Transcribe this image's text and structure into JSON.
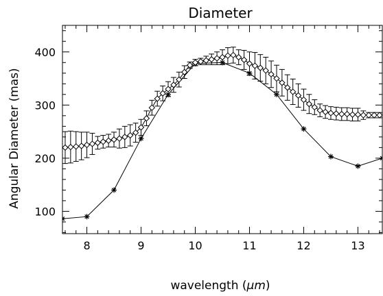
{
  "chart_data": {
    "type": "line",
    "title": "Diameter",
    "xlabel_prefix": "wavelength (",
    "xlabel_unit": "μm",
    "xlabel_suffix": ")",
    "ylabel": "Angular Diameter (mas)",
    "xlim": [
      7.55,
      13.45
    ],
    "ylim": [
      58,
      450
    ],
    "x_ticks": [
      8,
      9,
      10,
      11,
      12,
      13
    ],
    "x_tick_labels": [
      "8",
      "9",
      "10",
      "11",
      "12",
      "13"
    ],
    "x_minor_step": 0.2,
    "y_ticks": [
      100,
      200,
      300,
      400
    ],
    "y_tick_labels": [
      "100",
      "200",
      "300",
      "400"
    ],
    "y_minor_step": 20,
    "grid": false,
    "series": [
      {
        "marker": "asterisk",
        "x": [
          7.55,
          8.0,
          8.5,
          9.0,
          9.5,
          10.0,
          10.5,
          11.0,
          11.5,
          12.0,
          12.5,
          13.0,
          13.45
        ],
        "values": [
          86,
          90,
          140,
          237,
          320,
          378,
          380,
          360,
          320,
          255,
          203,
          185,
          200
        ]
      },
      {
        "marker": "diamond",
        "error_bars": true,
        "x": [
          7.6,
          7.7,
          7.8,
          7.9,
          8.0,
          8.1,
          8.2,
          8.3,
          8.4,
          8.5,
          8.6,
          8.7,
          8.8,
          8.9,
          9.0,
          9.1,
          9.2,
          9.3,
          9.4,
          9.5,
          9.6,
          9.7,
          9.8,
          9.9,
          10.0,
          10.1,
          10.2,
          10.3,
          10.4,
          10.5,
          10.6,
          10.7,
          10.8,
          10.9,
          11.0,
          11.1,
          11.2,
          11.3,
          11.4,
          11.5,
          11.6,
          11.7,
          11.8,
          11.9,
          12.0,
          12.1,
          12.2,
          12.3,
          12.4,
          12.5,
          12.6,
          12.7,
          12.8,
          12.9,
          13.0,
          13.1,
          13.2,
          13.3,
          13.4
        ],
        "values": [
          220,
          221,
          222,
          223,
          225,
          227,
          229,
          231,
          233,
          235,
          237,
          240,
          243,
          248,
          258,
          275,
          295,
          312,
          322,
          330,
          338,
          348,
          362,
          375,
          380,
          382,
          384,
          386,
          388,
          390,
          393,
          394,
          390,
          385,
          378,
          374,
          370,
          365,
          358,
          350,
          342,
          333,
          325,
          318,
          310,
          302,
          296,
          290,
          287,
          285,
          284,
          283,
          283,
          282,
          282,
          281,
          281,
          281,
          281
        ],
        "errors": [
          30,
          30,
          28,
          26,
          24,
          20,
          12,
          12,
          12,
          14,
          18,
          20,
          20,
          18,
          15,
          14,
          14,
          14,
          14,
          14,
          14,
          14,
          12,
          6,
          6,
          6,
          8,
          10,
          12,
          14,
          15,
          15,
          14,
          18,
          22,
          25,
          25,
          25,
          25,
          25,
          25,
          24,
          24,
          22,
          20,
          18,
          14,
          12,
          12,
          12,
          12,
          12,
          12,
          12,
          12,
          8,
          5,
          5,
          5
        ]
      }
    ]
  }
}
